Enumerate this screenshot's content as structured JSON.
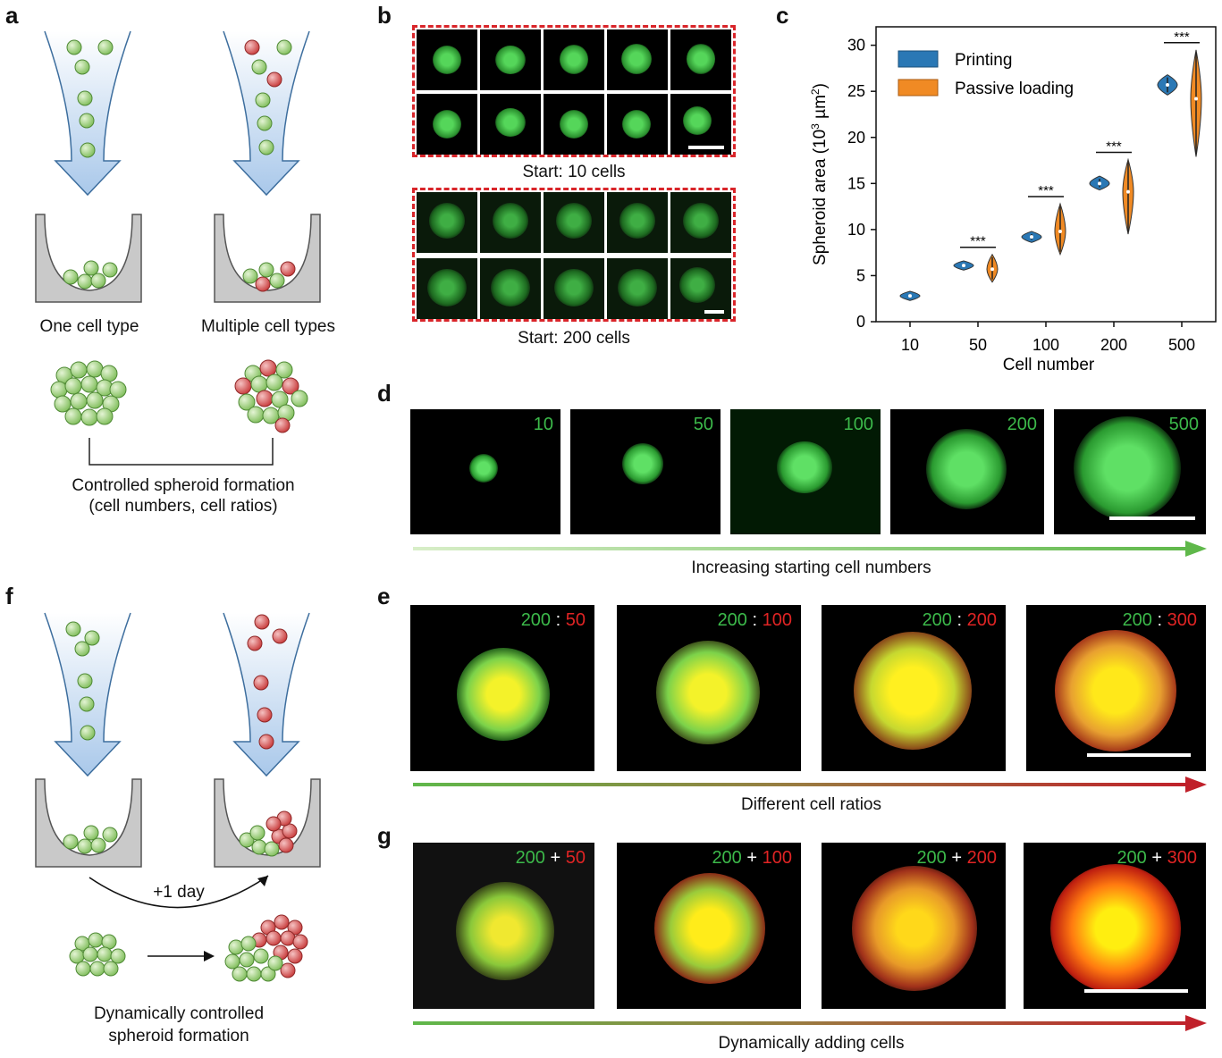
{
  "panel_labels": {
    "a": "a",
    "b": "b",
    "c": "c",
    "d": "d",
    "e": "e",
    "f": "f",
    "g": "g"
  },
  "panel_a": {
    "left_caption": "One cell type",
    "right_caption": "Multiple cell types",
    "bottom_caption_line1": "Controlled spheroid formation",
    "bottom_caption_line2": "(cell numbers, cell ratios)"
  },
  "panel_b": {
    "top_caption": "Start: 10 cells",
    "bottom_caption": "Start: 200 cells"
  },
  "panel_d": {
    "labels": [
      "10",
      "50",
      "100",
      "200",
      "500"
    ],
    "arrow_caption": "Increasing starting cell numbers"
  },
  "panel_e": {
    "labels": [
      {
        "green": "200",
        "sep": ":",
        "red": "50"
      },
      {
        "green": "200",
        "sep": ":",
        "red": "100"
      },
      {
        "green": "200",
        "sep": ":",
        "red": "200"
      },
      {
        "green": "200",
        "sep": ":",
        "red": "300"
      }
    ],
    "arrow_caption": "Different cell ratios"
  },
  "panel_f": {
    "day_label": "+1 day",
    "caption_line1": "Dynamically controlled",
    "caption_line2": "spheroid formation"
  },
  "panel_g": {
    "labels": [
      {
        "green": "200",
        "sep": "+",
        "red": "50"
      },
      {
        "green": "200",
        "sep": "+",
        "red": "100"
      },
      {
        "green": "200",
        "sep": "+",
        "red": "200"
      },
      {
        "green": "200",
        "sep": "+",
        "red": "300"
      }
    ],
    "arrow_caption": "Dynamically adding cells"
  },
  "colors": {
    "printing": "#2a78b5",
    "passive_loading": "#f08a24",
    "cell_green": "#8cc96a",
    "cell_red": "#d84a4a",
    "dashed_frame": "#d9252a"
  },
  "chart_data": {
    "type": "violin",
    "xlabel": "Cell number",
    "ylabel": "Spheroid area",
    "ylabel_unit_prefix": "10",
    "ylabel_unit_exp": "3",
    "ylabel_unit_main": "µm",
    "ylabel_unit_exp2": "2",
    "categories": [
      "10",
      "50",
      "100",
      "200",
      "500"
    ],
    "ylim": [
      0,
      32
    ],
    "yticks": [
      "0",
      "5",
      "10",
      "15",
      "20",
      "25",
      "30"
    ],
    "legend_position": "top-left",
    "series": [
      {
        "name": "Printing",
        "medians": [
          2.8,
          6.1,
          9.2,
          15.0,
          25.7
        ],
        "ranges": [
          [
            2.3,
            3.3
          ],
          [
            5.6,
            6.6
          ],
          [
            8.6,
            9.8
          ],
          [
            14.3,
            15.8
          ],
          [
            24.6,
            26.8
          ]
        ]
      },
      {
        "name": "Passive loading",
        "medians": [
          null,
          5.7,
          9.8,
          14.1,
          24.2
        ],
        "ranges": [
          null,
          [
            4.3,
            7.3
          ],
          [
            7.3,
            12.8
          ],
          [
            9.5,
            17.6
          ],
          [
            17.9,
            29.5
          ]
        ]
      }
    ],
    "significance": [
      {
        "category": "50",
        "label": "***"
      },
      {
        "category": "100",
        "label": "***"
      },
      {
        "category": "200",
        "label": "***"
      },
      {
        "category": "500",
        "label": "***"
      }
    ]
  }
}
